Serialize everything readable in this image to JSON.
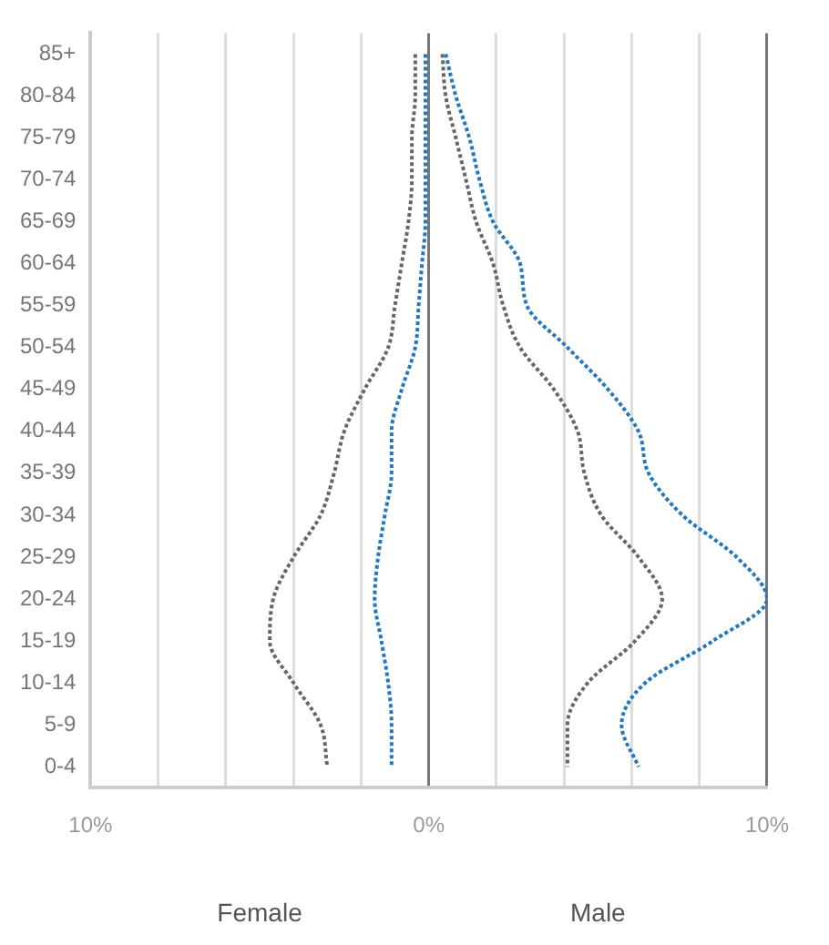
{
  "chart_data": {
    "type": "line",
    "orientation": "horizontal",
    "categories": [
      "85+",
      "80-84",
      "75-79",
      "70-74",
      "65-69",
      "60-64",
      "55-59",
      "50-54",
      "45-49",
      "40-44",
      "35-39",
      "30-34",
      "25-29",
      "20-24",
      "15-19",
      "10-14",
      "5-9",
      "0-4"
    ],
    "series": [
      {
        "color": "#666666",
        "values": [
          -0.4,
          -0.4,
          -0.5,
          -0.5,
          -0.6,
          -0.8,
          -1.0,
          -1.2,
          -1.9,
          -2.5,
          -2.8,
          -3.2,
          -4.0,
          -4.6,
          -4.7,
          -4.0,
          -3.2,
          -3.0
        ]
      },
      {
        "color": "#1f77c8",
        "values": [
          -0.1,
          -0.1,
          -0.1,
          -0.1,
          -0.1,
          -0.2,
          -0.3,
          -0.4,
          -0.8,
          -1.1,
          -1.1,
          -1.3,
          -1.5,
          -1.6,
          -1.4,
          -1.2,
          -1.1,
          -1.1
        ]
      },
      {
        "color": "#666666",
        "values": [
          0.4,
          0.5,
          0.8,
          1.1,
          1.4,
          1.9,
          2.2,
          2.7,
          3.7,
          4.4,
          4.6,
          5.1,
          6.2,
          6.9,
          6.1,
          4.7,
          4.1,
          4.1
        ]
      },
      {
        "color": "#1f77c8",
        "values": [
          0.5,
          0.8,
          1.2,
          1.5,
          1.9,
          2.7,
          2.9,
          4.1,
          5.3,
          6.2,
          6.5,
          7.5,
          9.1,
          10.0,
          8.4,
          6.4,
          5.7,
          6.2
        ]
      }
    ],
    "xlim": [
      -10,
      10
    ],
    "xticks": [
      {
        "value": -10,
        "label": "10%"
      },
      {
        "value": -8,
        "label": null
      },
      {
        "value": -6,
        "label": null
      },
      {
        "value": -4,
        "label": null
      },
      {
        "value": -2,
        "label": null
      },
      {
        "value": 0,
        "label": "0%"
      },
      {
        "value": 2,
        "label": null
      },
      {
        "value": 4,
        "label": null
      },
      {
        "value": 6,
        "label": null
      },
      {
        "value": 8,
        "label": null
      },
      {
        "value": 10,
        "label": "10%"
      }
    ],
    "grid": "x",
    "legend": false,
    "marker": "none",
    "line_style": "dotted",
    "annotations": [
      "Female",
      "Male"
    ]
  }
}
